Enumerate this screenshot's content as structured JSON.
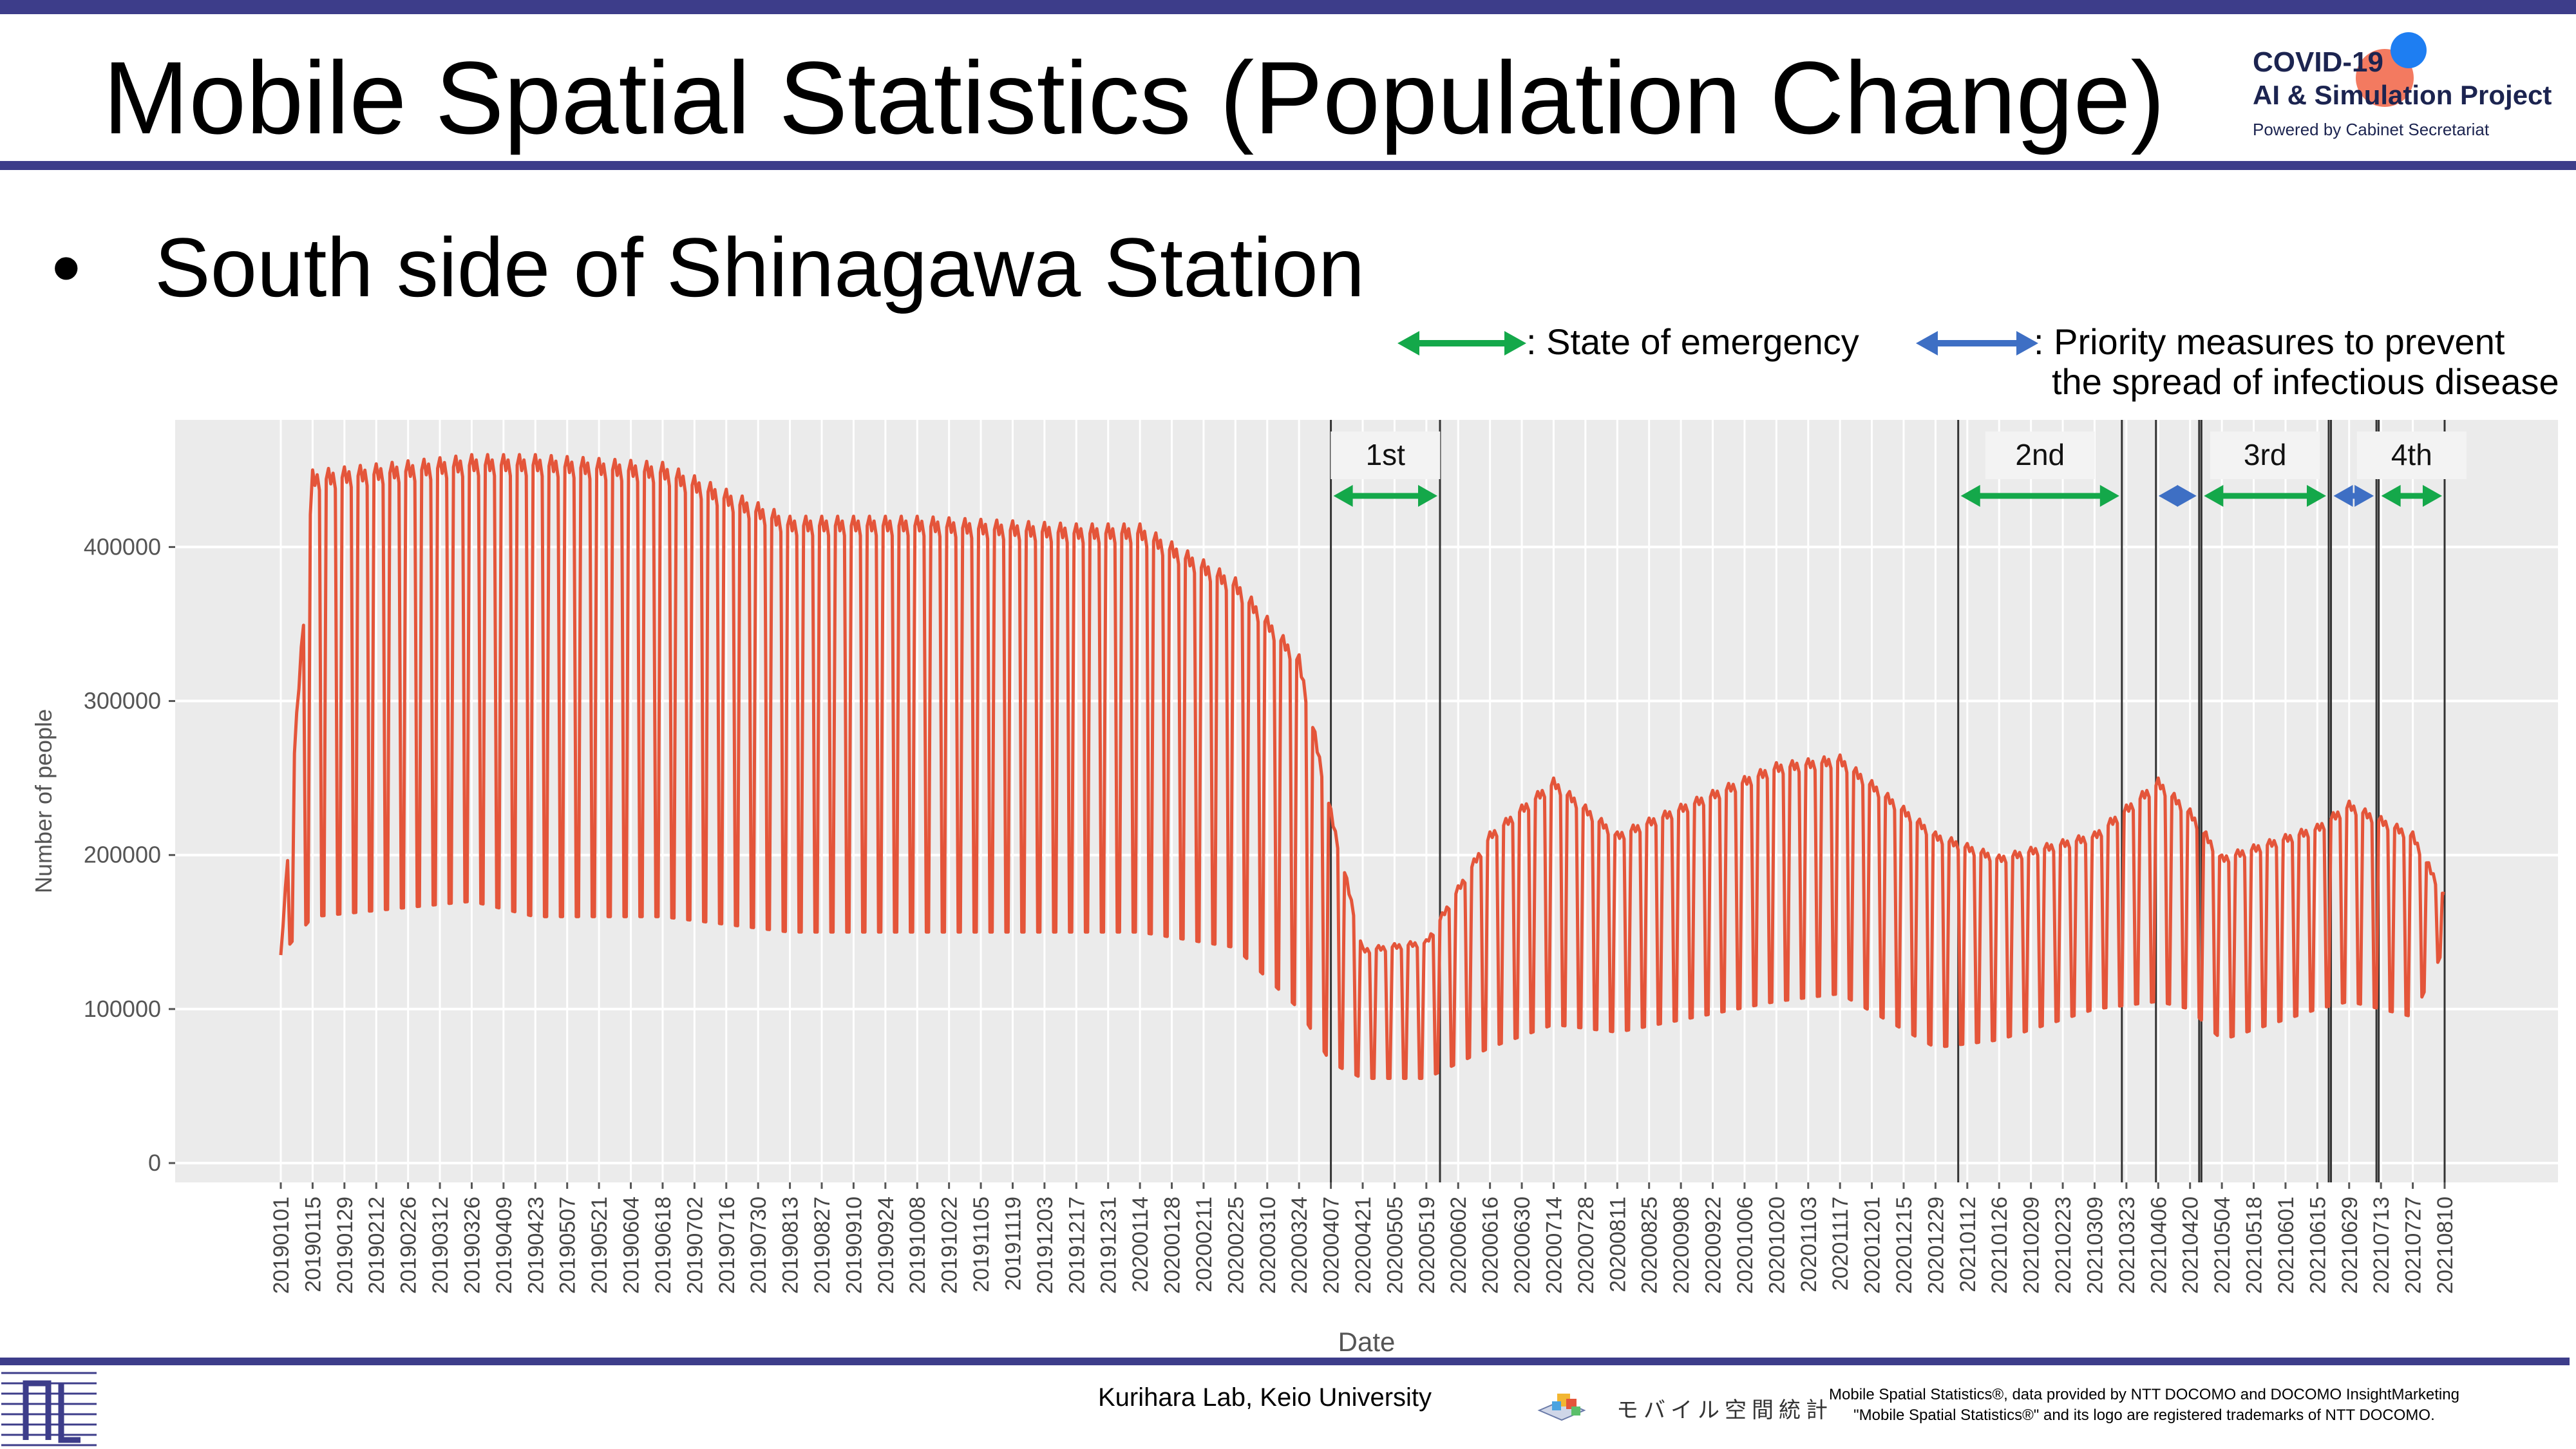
{
  "slide": {
    "title": "Mobile Spatial Statistics (Population Change)",
    "bullet_symbol": "•",
    "bullet_text": "South side of Shinagawa Station",
    "logo": {
      "line1": "COVID-19",
      "line2": "AI & Simulation Project",
      "line3": "Powered by Cabinet Secretariat"
    },
    "footer": {
      "lab": "Kurihara Lab, Keio University",
      "mobile_logo_text": "モバイル空間統計",
      "note_line1": "Mobile Spatial Statistics®, data provided by NTT DOCOMO and DOCOMO InsightMarketing",
      "note_line2": "\"Mobile Spatial Statistics®\" and its logo are registered trademarks of NTT DOCOMO."
    },
    "legend": {
      "emergency_label": ": State of emergency",
      "priority_label_line1": ": Priority measures to prevent",
      "priority_label_line2": "the spread of infectious disease",
      "emergency_color": "#14a84a",
      "priority_color": "#3e6fc4"
    }
  },
  "chart_data": {
    "type": "line",
    "xlabel": "Date",
    "ylabel": "Number of people",
    "ylim": [
      0,
      470000
    ],
    "yticks": [
      0,
      100000,
      200000,
      300000,
      400000
    ],
    "ytick_labels": [
      "0",
      "100000",
      "200000",
      "300000",
      "400000"
    ],
    "grid": true,
    "line_color": "#e4553a",
    "xtick_labels": [
      "20190101",
      "20190115",
      "20190129",
      "20190212",
      "20190226",
      "20190312",
      "20190326",
      "20190409",
      "20190423",
      "20190507",
      "20190521",
      "20190604",
      "20190618",
      "20190702",
      "20190716",
      "20190730",
      "20190813",
      "20190827",
      "20190910",
      "20190924",
      "20191008",
      "20191022",
      "20191105",
      "20191119",
      "20191203",
      "20191217",
      "20191231",
      "20200114",
      "20200128",
      "20200211",
      "20200225",
      "20200310",
      "20200324",
      "20200407",
      "20200421",
      "20200505",
      "20200519",
      "20200602",
      "20200616",
      "20200630",
      "20200714",
      "20200728",
      "20200811",
      "20200825",
      "20200908",
      "20200922",
      "20201006",
      "20201020",
      "20201103",
      "20201117",
      "20201201",
      "20201215",
      "20201229",
      "20210112",
      "20210126",
      "20210209",
      "20210223",
      "20210309",
      "20210323",
      "20210406",
      "20210420",
      "20210504",
      "20210518",
      "20210601",
      "20210615",
      "20210629",
      "20210713",
      "20210727",
      "20210810"
    ],
    "series_envelope": {
      "description_points": [
        {
          "x": "20190101",
          "weekday_peak": 135000,
          "weekend_low": 135000
        },
        {
          "x": "20190115",
          "weekday_peak": 450000,
          "weekend_low": 160000
        },
        {
          "x": "20190326",
          "weekday_peak": 460000,
          "weekend_low": 170000
        },
        {
          "x": "20190423",
          "weekday_peak": 460000,
          "weekend_low": 160000
        },
        {
          "x": "20190618",
          "weekday_peak": 455000,
          "weekend_low": 160000
        },
        {
          "x": "20190813",
          "weekday_peak": 420000,
          "weekend_low": 150000
        },
        {
          "x": "20191008",
          "weekday_peak": 420000,
          "weekend_low": 150000
        },
        {
          "x": "20191217",
          "weekday_peak": 415000,
          "weekend_low": 150000
        },
        {
          "x": "20200114",
          "weekday_peak": 415000,
          "weekend_low": 150000
        },
        {
          "x": "20200225",
          "weekday_peak": 380000,
          "weekend_low": 140000
        },
        {
          "x": "20200324",
          "weekday_peak": 330000,
          "weekend_low": 100000
        },
        {
          "x": "20200407",
          "weekday_peak": 230000,
          "weekend_low": 65000
        },
        {
          "x": "20200421",
          "weekday_peak": 140000,
          "weekend_low": 55000
        },
        {
          "x": "20200519",
          "weekday_peak": 145000,
          "weekend_low": 55000
        },
        {
          "x": "20200616",
          "weekday_peak": 215000,
          "weekend_low": 75000
        },
        {
          "x": "20200714",
          "weekday_peak": 250000,
          "weekend_low": 90000
        },
        {
          "x": "20200811",
          "weekday_peak": 215000,
          "weekend_low": 85000
        },
        {
          "x": "20201020",
          "weekday_peak": 260000,
          "weekend_low": 105000
        },
        {
          "x": "20201117",
          "weekday_peak": 265000,
          "weekend_low": 110000
        },
        {
          "x": "20201229",
          "weekday_peak": 215000,
          "weekend_low": 75000
        },
        {
          "x": "20210126",
          "weekday_peak": 200000,
          "weekend_low": 80000
        },
        {
          "x": "20210309",
          "weekday_peak": 215000,
          "weekend_low": 100000
        },
        {
          "x": "20210406",
          "weekday_peak": 250000,
          "weekend_low": 105000
        },
        {
          "x": "20210420",
          "weekday_peak": 230000,
          "weekend_low": 100000
        },
        {
          "x": "20210504",
          "weekday_peak": 200000,
          "weekend_low": 80000
        },
        {
          "x": "20210615",
          "weekday_peak": 220000,
          "weekend_low": 100000
        },
        {
          "x": "20210629",
          "weekday_peak": 235000,
          "weekend_low": 105000
        },
        {
          "x": "20210727",
          "weekday_peak": 215000,
          "weekend_low": 95000
        },
        {
          "x": "20210810",
          "weekday_peak": 175000,
          "weekend_low": 140000
        }
      ]
    },
    "periods": [
      {
        "label": "1st",
        "kind": "emergency",
        "start": "20200407",
        "end": "20200525"
      },
      {
        "label": "2nd",
        "kind": "emergency",
        "start": "20210108",
        "end": "20210321"
      },
      {
        "label": "",
        "kind": "priority",
        "start": "20210405",
        "end": "20210424"
      },
      {
        "label": "3rd",
        "kind": "emergency",
        "start": "20210425",
        "end": "20210620"
      },
      {
        "label": "",
        "kind": "priority",
        "start": "20210621",
        "end": "20210711"
      },
      {
        "label": "4th",
        "kind": "emergency",
        "start": "20210712",
        "end": "20210810"
      }
    ]
  }
}
